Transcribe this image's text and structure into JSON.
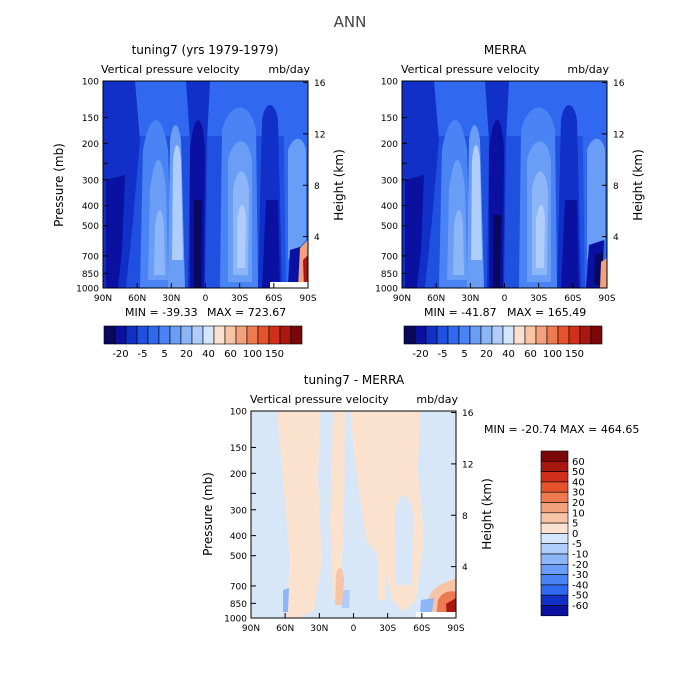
{
  "figure_title": "ANN",
  "chart_data": [
    {
      "type": "heatmap",
      "panel": "model",
      "title": "tuning7 (yrs 1979-1979)",
      "subtitle": "Vertical pressure velocity",
      "units": "mb/day",
      "xlabel": "",
      "ylabel": "Pressure (mb)",
      "y2label": "Height (km)",
      "x_ticks": [
        "90N",
        "60N",
        "30N",
        "0",
        "30S",
        "60S",
        "90S"
      ],
      "y_ticks": [
        100,
        150,
        200,
        250,
        300,
        400,
        500,
        700,
        850,
        1000
      ],
      "y_tick_labels": [
        "100",
        "150",
        "200",
        "",
        "300",
        "400",
        "500",
        "700",
        "850",
        "1000"
      ],
      "y2_ticks": [
        16,
        12,
        8,
        4
      ],
      "ylim": [
        1000,
        100
      ],
      "min_text": "MIN = -39.33",
      "max_text": "MAX = 723.67",
      "colorbar_levels": [
        -30,
        -25,
        -20,
        -15,
        -10,
        -5,
        0,
        5,
        10,
        15,
        20,
        30,
        40,
        50,
        60,
        80,
        100,
        120,
        150
      ],
      "colorbar_labels": [
        "-20",
        "-5",
        "5",
        "20",
        "40",
        "60",
        "100",
        "150"
      ]
    },
    {
      "type": "heatmap",
      "panel": "obs",
      "title": "MERRA",
      "subtitle": "Vertical pressure velocity",
      "units": "mb/day",
      "xlabel": "",
      "ylabel": "",
      "y2label": "Height (km)",
      "x_ticks": [
        "90N",
        "60N",
        "30N",
        "0",
        "30S",
        "60S",
        "90S"
      ],
      "y_ticks": [
        100,
        150,
        200,
        250,
        300,
        400,
        500,
        700,
        850,
        1000
      ],
      "y_tick_labels": [
        "100",
        "150",
        "200",
        "",
        "300",
        "400",
        "500",
        "700",
        "850",
        "1000"
      ],
      "y2_ticks": [
        16,
        12,
        8,
        4
      ],
      "ylim": [
        1000,
        100
      ],
      "min_text": "MIN = -41.87",
      "max_text": "MAX = 165.49",
      "colorbar_levels": [
        -30,
        -25,
        -20,
        -15,
        -10,
        -5,
        0,
        5,
        10,
        15,
        20,
        30,
        40,
        50,
        60,
        80,
        100,
        120,
        150
      ],
      "colorbar_labels": [
        "-20",
        "-5",
        "5",
        "20",
        "40",
        "60",
        "100",
        "150"
      ]
    },
    {
      "type": "heatmap",
      "panel": "diff",
      "title": "tuning7 - MERRA",
      "subtitle": "Vertical pressure velocity",
      "units": "mb/day",
      "xlabel": "",
      "ylabel": "Pressure (mb)",
      "y2label": "Height (km)",
      "x_ticks": [
        "90N",
        "60N",
        "30N",
        "0",
        "30S",
        "60S",
        "90S"
      ],
      "y_ticks": [
        100,
        150,
        200,
        250,
        300,
        400,
        500,
        700,
        850,
        1000
      ],
      "y_tick_labels": [
        "100",
        "150",
        "200",
        "",
        "300",
        "400",
        "500",
        "700",
        "850",
        "1000"
      ],
      "y2_ticks": [
        16,
        12,
        8,
        4
      ],
      "ylim": [
        1000,
        100
      ],
      "minmax_text": "MIN = -20.74   MAX = 464.65",
      "colorbar_levels": [
        60,
        50,
        40,
        30,
        20,
        10,
        5,
        0,
        -5,
        -10,
        -20,
        -30,
        -40,
        -50,
        -60
      ],
      "colorbar_labels": [
        "60",
        "50",
        "40",
        "30",
        "20",
        "10",
        "5",
        "0",
        "-5",
        "-10",
        "-20",
        "-30",
        "-40",
        "-50",
        "-60"
      ]
    }
  ],
  "colors": {
    "div_blue": [
      "#08085f",
      "#0a10a0",
      "#1030c8",
      "#2050e0",
      "#3068f0",
      "#4a84f4",
      "#6a9ef6",
      "#8cb6f8",
      "#aecdfa",
      "#d4e6fc"
    ],
    "div_warm": [
      "#fbe1cf",
      "#f7c4a6",
      "#f3a17c",
      "#ee7a52",
      "#e6522c",
      "#d0301a",
      "#a81810",
      "#7a0808"
    ],
    "diff_field_bg": "#d8e7f8",
    "diff_warm_bg": "#fbe2cf"
  }
}
